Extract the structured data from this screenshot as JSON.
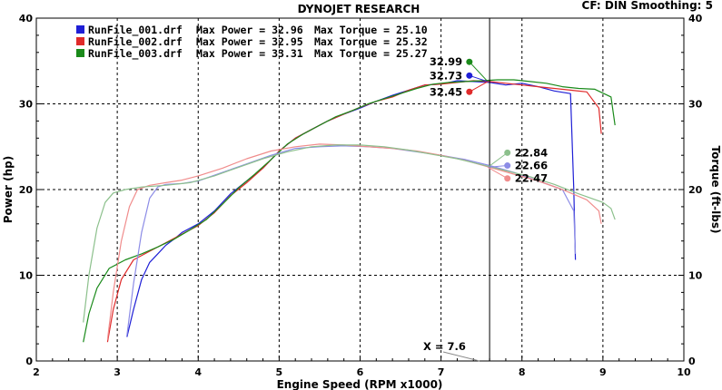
{
  "header": {
    "title": "DYNOJET RESEARCH",
    "settings": "CF: DIN  Smoothing: 5"
  },
  "cursor_label": "X = 7.6",
  "colors": {
    "run1": "#1f1fd6",
    "run2": "#e02a2a",
    "run3": "#1a8a1a",
    "run1_light": "#8c8ce6",
    "run2_light": "#f08c8c",
    "run3_light": "#8cc08c"
  },
  "legend": [
    {
      "file": "RunFile_001.drf",
      "power_label": "Max Power = 32.96",
      "torque_label": "Max Torque = 25.10"
    },
    {
      "file": "RunFile_002.drf",
      "power_label": "Max Power = 32.95",
      "torque_label": "Max Torque = 25.32"
    },
    {
      "file": "RunFile_003.drf",
      "power_label": "Max Power = 33.31",
      "torque_label": "Max Torque = 25.27"
    }
  ],
  "chart_data": {
    "type": "line",
    "title": "DYNOJET RESEARCH",
    "xlabel": "Engine Speed (RPM x1000)",
    "ylabel": "Power (hp)",
    "y2label": "Torque (ft-lbs)",
    "xlim": [
      2,
      10
    ],
    "ylim": [
      0,
      40
    ],
    "y2lim": [
      0,
      40
    ],
    "xticks": [
      2,
      3,
      4,
      5,
      6,
      7,
      8,
      9,
      10
    ],
    "yticks": [
      0,
      10,
      20,
      30,
      40
    ],
    "y2ticks": [
      0,
      10,
      20,
      30,
      40
    ],
    "grid": true,
    "legend_position": "top-left",
    "cursor_x": 7.6,
    "series": [
      {
        "name": "RunFile_001.drf Max Power = 32.96",
        "axis": "power",
        "color": "#1f1fd6",
        "x": [
          3.12,
          3.2,
          3.3,
          3.4,
          3.5,
          3.6,
          3.7,
          3.8,
          4.0,
          4.2,
          4.4,
          4.6,
          4.8,
          5.0,
          5.2,
          5.4,
          5.6,
          5.8,
          6.0,
          6.2,
          6.4,
          6.6,
          6.8,
          7.0,
          7.2,
          7.4,
          7.6,
          7.8,
          8.0,
          8.2,
          8.4,
          8.6,
          8.64,
          8.66
        ],
        "y": [
          2.8,
          6.0,
          9.5,
          11.5,
          12.5,
          13.5,
          14.2,
          15.0,
          16.0,
          17.5,
          19.5,
          21.0,
          22.5,
          24.5,
          26.0,
          27.0,
          28.0,
          28.8,
          29.5,
          30.3,
          31.0,
          31.6,
          32.2,
          32.3,
          32.7,
          32.6,
          32.5,
          32.2,
          32.4,
          32.0,
          31.5,
          31.2,
          20.0,
          11.8
        ]
      },
      {
        "name": "RunFile_002.drf Max Power = 32.95",
        "axis": "power",
        "color": "#e02a2a",
        "x": [
          2.88,
          2.95,
          3.05,
          3.2,
          3.4,
          3.6,
          3.8,
          4.0,
          4.2,
          4.4,
          4.6,
          4.8,
          5.0,
          5.2,
          5.4,
          5.6,
          5.8,
          6.0,
          6.2,
          6.4,
          6.6,
          6.8,
          7.0,
          7.2,
          7.4,
          7.6,
          7.8,
          8.0,
          8.2,
          8.4,
          8.6,
          8.8,
          8.95,
          8.98
        ],
        "y": [
          2.2,
          6.0,
          9.5,
          11.8,
          12.8,
          13.8,
          14.8,
          15.8,
          17.3,
          19.3,
          20.8,
          22.5,
          24.5,
          26.0,
          27.0,
          28.0,
          28.8,
          29.6,
          30.3,
          30.8,
          31.6,
          32.2,
          32.3,
          32.5,
          32.7,
          32.6,
          32.4,
          32.2,
          32.0,
          31.8,
          31.6,
          31.4,
          29.5,
          26.5
        ]
      },
      {
        "name": "RunFile_003.drf Max Power = 33.31",
        "axis": "power",
        "color": "#1a8a1a",
        "x": [
          2.58,
          2.65,
          2.75,
          2.9,
          3.1,
          3.3,
          3.5,
          3.7,
          3.9,
          4.1,
          4.3,
          4.5,
          4.7,
          4.9,
          5.1,
          5.3,
          5.5,
          5.7,
          5.9,
          6.1,
          6.3,
          6.5,
          6.7,
          6.9,
          7.1,
          7.3,
          7.5,
          7.7,
          7.9,
          8.1,
          8.3,
          8.5,
          8.7,
          8.9,
          9.1,
          9.15
        ],
        "y": [
          2.2,
          5.5,
          8.5,
          10.8,
          11.8,
          12.5,
          13.3,
          14.2,
          15.3,
          16.5,
          18.3,
          20.2,
          21.8,
          23.5,
          25.3,
          26.5,
          27.5,
          28.5,
          29.2,
          30.0,
          30.6,
          31.2,
          31.8,
          32.3,
          32.5,
          32.6,
          32.7,
          32.8,
          32.8,
          32.6,
          32.4,
          32.0,
          31.8,
          31.7,
          30.8,
          27.5
        ]
      },
      {
        "name": "RunFile_001.drf Max Torque = 25.10",
        "axis": "torque",
        "color": "#8c8ce6",
        "x": [
          3.12,
          3.2,
          3.3,
          3.4,
          3.5,
          3.6,
          3.8,
          4.0,
          4.3,
          4.6,
          4.9,
          5.2,
          5.5,
          5.8,
          6.1,
          6.4,
          6.7,
          7.0,
          7.3,
          7.6,
          7.9,
          8.2,
          8.5,
          8.64,
          8.66
        ],
        "y": [
          3.0,
          9.0,
          15.0,
          19.0,
          20.3,
          20.6,
          20.7,
          21.0,
          22.0,
          23.0,
          24.0,
          24.8,
          25.0,
          25.1,
          25.0,
          24.8,
          24.4,
          24.0,
          23.5,
          22.8,
          22.0,
          21.0,
          20.0,
          17.5,
          12.5
        ]
      },
      {
        "name": "RunFile_002.drf Max Torque = 25.32",
        "axis": "torque",
        "color": "#f08c8c",
        "x": [
          2.88,
          2.95,
          3.05,
          3.15,
          3.25,
          3.4,
          3.6,
          3.8,
          4.0,
          4.3,
          4.6,
          4.9,
          5.2,
          5.5,
          5.8,
          6.1,
          6.4,
          6.7,
          7.0,
          7.3,
          7.6,
          7.9,
          8.2,
          8.5,
          8.8,
          8.95,
          8.98
        ],
        "y": [
          2.5,
          8.0,
          14.0,
          18.0,
          20.0,
          20.5,
          20.8,
          21.1,
          21.6,
          22.5,
          23.6,
          24.5,
          25.0,
          25.3,
          25.2,
          25.0,
          24.8,
          24.5,
          24.0,
          23.4,
          22.6,
          21.8,
          21.0,
          20.0,
          18.8,
          17.5,
          16.0
        ]
      },
      {
        "name": "RunFile_003.drf Max Torque = 25.27",
        "axis": "torque",
        "color": "#8cc08c",
        "x": [
          2.58,
          2.65,
          2.75,
          2.85,
          2.95,
          3.1,
          3.3,
          3.6,
          3.9,
          4.2,
          4.5,
          4.8,
          5.1,
          5.4,
          5.7,
          6.0,
          6.3,
          6.6,
          6.9,
          7.2,
          7.5,
          7.8,
          8.1,
          8.4,
          8.7,
          9.0,
          9.1,
          9.15
        ],
        "y": [
          4.5,
          10.0,
          15.5,
          18.5,
          19.6,
          20.0,
          20.3,
          20.5,
          20.8,
          21.6,
          22.6,
          23.6,
          24.4,
          25.0,
          25.2,
          25.2,
          25.0,
          24.6,
          24.1,
          23.6,
          22.9,
          22.2,
          21.5,
          20.6,
          19.5,
          18.5,
          17.8,
          16.5
        ]
      }
    ],
    "markers": {
      "power": [
        {
          "label": "32.99",
          "x": 7.35,
          "y": 34.9,
          "color": "#1a8a1a"
        },
        {
          "label": "32.73",
          "x": 7.35,
          "y": 33.3,
          "color": "#1f1fd6"
        },
        {
          "label": "32.45",
          "x": 7.35,
          "y": 31.4,
          "color": "#e02a2a"
        }
      ],
      "torque": [
        {
          "label": "22.84",
          "x": 7.82,
          "y": 24.3,
          "color": "#8cc08c"
        },
        {
          "label": "22.66",
          "x": 7.82,
          "y": 22.8,
          "color": "#8c8ce6"
        },
        {
          "label": "22.47",
          "x": 7.82,
          "y": 21.3,
          "color": "#f08c8c"
        }
      ]
    }
  }
}
